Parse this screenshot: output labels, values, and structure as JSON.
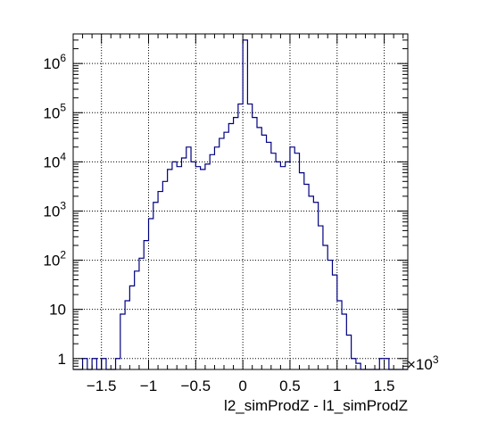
{
  "chart_data": {
    "type": "histogram",
    "title": "",
    "xlabel": "l2_simProdZ - l1_simProdZ",
    "x_multiplier_label": "×10",
    "x_multiplier_exponent": "3",
    "ylabel": "",
    "xlim": [
      -1.8,
      1.75
    ],
    "ylim": [
      0.6,
      4000000
    ],
    "yscale": "log",
    "grid": true,
    "line_color": "#000080",
    "x_ticks": [
      {
        "value": -1.5,
        "label": "−1.5"
      },
      {
        "value": -1.0,
        "label": "−1"
      },
      {
        "value": -0.5,
        "label": "−0.5"
      },
      {
        "value": 0.0,
        "label": "0"
      },
      {
        "value": 0.5,
        "label": "0.5"
      },
      {
        "value": 1.0,
        "label": "1"
      },
      {
        "value": 1.5,
        "label": "1.5"
      }
    ],
    "y_ticks": [
      {
        "value": 1,
        "base": "1",
        "exp": ""
      },
      {
        "value": 10,
        "base": "10",
        "exp": ""
      },
      {
        "value": 100,
        "base": "10",
        "exp": "2"
      },
      {
        "value": 1000,
        "base": "10",
        "exp": "3"
      },
      {
        "value": 10000,
        "base": "10",
        "exp": "4"
      },
      {
        "value": 100000,
        "base": "10",
        "exp": "5"
      },
      {
        "value": 1000000,
        "base": "10",
        "exp": "6"
      }
    ],
    "bins": {
      "edges": [
        -1.8,
        -1.75,
        -1.7,
        -1.65,
        -1.6,
        -1.55,
        -1.5,
        -1.45,
        -1.4,
        -1.35,
        -1.3,
        -1.25,
        -1.2,
        -1.15,
        -1.1,
        -1.05,
        -1.0,
        -0.95,
        -0.9,
        -0.85,
        -0.8,
        -0.75,
        -0.7,
        -0.65,
        -0.6,
        -0.55,
        -0.5,
        -0.45,
        -0.4,
        -0.35,
        -0.3,
        -0.25,
        -0.2,
        -0.15,
        -0.1,
        -0.05,
        0.0,
        0.05,
        0.1,
        0.15,
        0.2,
        0.25,
        0.3,
        0.35,
        0.4,
        0.45,
        0.5,
        0.55,
        0.6,
        0.65,
        0.7,
        0.75,
        0.8,
        0.85,
        0.9,
        0.95,
        1.0,
        1.05,
        1.1,
        1.15,
        1.2,
        1.25,
        1.3,
        1.35,
        1.4,
        1.45,
        1.5,
        1.55,
        1.6,
        1.65,
        1.7,
        1.75
      ],
      "counts": [
        0,
        0,
        1,
        0,
        1,
        0,
        1,
        0,
        0,
        1,
        8,
        15,
        30,
        60,
        110,
        250,
        700,
        1500,
        2500,
        4000,
        7000,
        10000,
        8000,
        12000,
        20000,
        10000,
        8000,
        7000,
        9000,
        14000,
        20000,
        30000,
        40000,
        60000,
        80000,
        150000,
        3000000,
        150000,
        80000,
        50000,
        35000,
        25000,
        15000,
        10000,
        8000,
        10000,
        20000,
        15000,
        6000,
        3500,
        2000,
        1500,
        500,
        200,
        100,
        50,
        15,
        8,
        3,
        1,
        0.8,
        0,
        0,
        0,
        0,
        1,
        1,
        0,
        0,
        0,
        0
      ]
    }
  }
}
